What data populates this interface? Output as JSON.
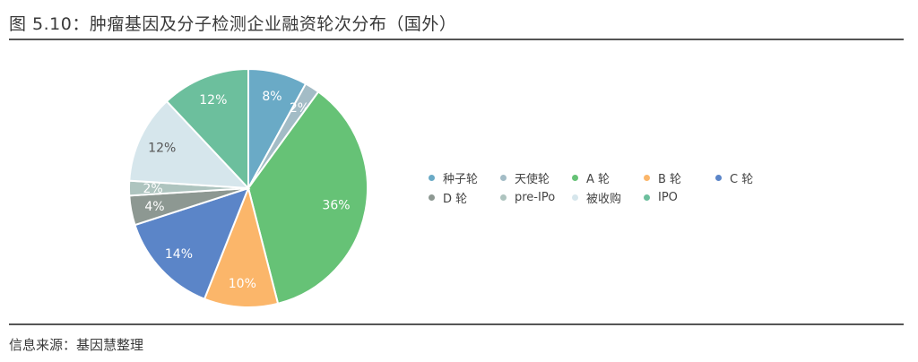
{
  "title": "图 5.10：肿瘤基因及分子检测企业融资轮次分布（国外）",
  "source": "信息来源：基因慧整理",
  "chart_data": {
    "type": "pie",
    "title": "图 5.10：肿瘤基因及分子检测企业融资轮次分布（国外）",
    "legend_position": "right",
    "slices": [
      {
        "label": "种子轮",
        "value": 8,
        "display": "8%",
        "color": "#6aaac6"
      },
      {
        "label": "天使轮",
        "value": 2,
        "display": "2%",
        "color": "#a3bcc6"
      },
      {
        "label": "A 轮",
        "value": 36,
        "display": "36%",
        "color": "#66c276"
      },
      {
        "label": "B 轮",
        "value": 10,
        "display": "10%",
        "color": "#fbb66a"
      },
      {
        "label": "C 轮",
        "value": 14,
        "display": "14%",
        "color": "#5b85c8"
      },
      {
        "label": "D 轮",
        "value": 4,
        "display": "4%",
        "color": "#8d9892"
      },
      {
        "label": "pre-IPo",
        "value": 2,
        "display": "2%",
        "color": "#aec4bf"
      },
      {
        "label": "被收购",
        "value": 12,
        "display": "12%",
        "color": "#d6e6ec"
      },
      {
        "label": "IPO",
        "value": 12,
        "display": "12%",
        "color": "#6cbf9d"
      }
    ]
  }
}
